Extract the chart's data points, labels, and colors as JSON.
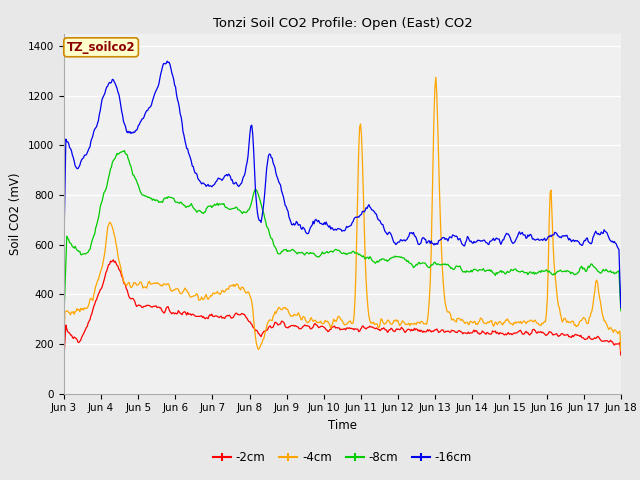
{
  "title": "Tonzi Soil CO2 Profile: Open (East) CO2",
  "ylabel": "Soil CO2 (mV)",
  "xlabel": "Time",
  "annotation": "TZ_soilco2",
  "ylim": [
    0,
    1450
  ],
  "yticks": [
    0,
    200,
    400,
    600,
    800,
    1000,
    1200,
    1400
  ],
  "legend_labels": [
    "-2cm",
    "-4cm",
    "-8cm",
    "-16cm"
  ],
  "line_colors": [
    "#ff0000",
    "#ffa500",
    "#00cc00",
    "#0000ee"
  ],
  "bg_color": "#e8e8e8",
  "plot_bg_color": "#f0f0f0",
  "n_points": 600,
  "time_start": 3.0,
  "time_end": 18.0,
  "xtick_positions": [
    3,
    4,
    5,
    6,
    7,
    8,
    9,
    10,
    11,
    12,
    13,
    14,
    15,
    16,
    17,
    18
  ],
  "xtick_labels": [
    "Jun 3",
    "Jun 4",
    "Jun 5",
    "Jun 6",
    "Jun 7",
    "Jun 8",
    "Jun 9",
    "Jun 10",
    "Jun 11",
    "Jun 12",
    "Jun 13",
    "Jun 14",
    "Jun 15",
    "Jun 16",
    "Jun 17",
    "Jun 18"
  ]
}
